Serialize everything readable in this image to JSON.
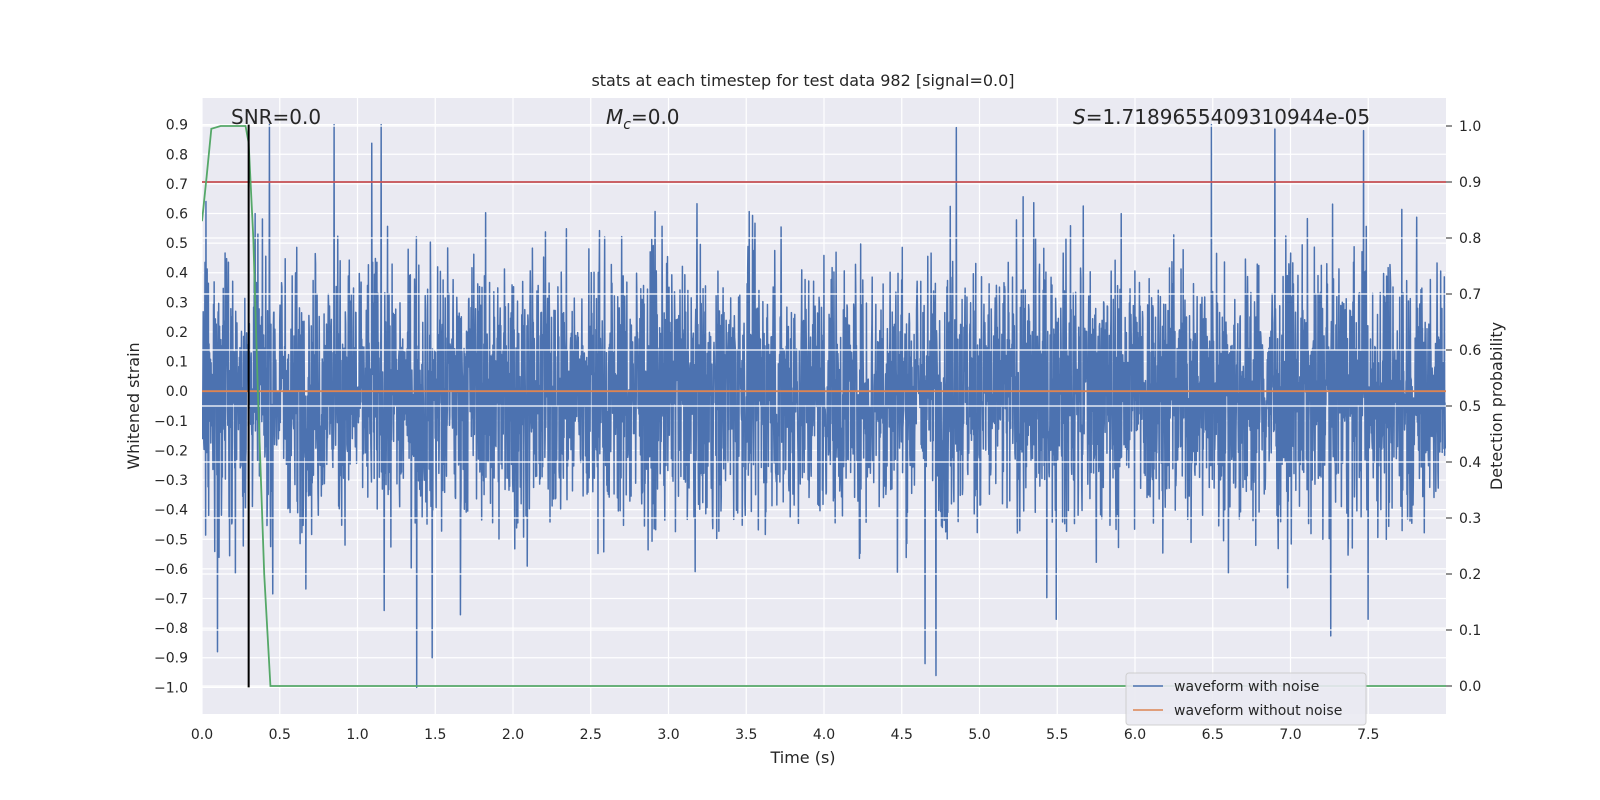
{
  "chart_data": {
    "type": "line",
    "title": "stats at each timestep for test data 982 [signal=0.0]",
    "xlabel": "Time (s)",
    "ylabel_left": "Whitened strain",
    "ylabel_right": "Detection probability",
    "xlim": [
      0.0,
      8.0
    ],
    "ylim_left": [
      -1.09,
      0.99
    ],
    "ylim_right": [
      -0.05,
      1.05
    ],
    "x_ticks": [
      "0.0",
      "0.5",
      "1.0",
      "1.5",
      "2.0",
      "2.5",
      "3.0",
      "3.5",
      "4.0",
      "4.5",
      "5.0",
      "5.5",
      "6.0",
      "6.5",
      "7.0",
      "7.5"
    ],
    "y_ticks_left": [
      "0.9",
      "0.8",
      "0.7",
      "0.6",
      "0.5",
      "0.4",
      "0.3",
      "0.2",
      "0.1",
      "0.0",
      "−0.1",
      "−0.2",
      "−0.3",
      "−0.4",
      "−0.5",
      "−0.6",
      "−0.7",
      "−0.8",
      "−0.9",
      "−1.0"
    ],
    "y_ticks_right": [
      "1.0",
      "0.9",
      "0.8",
      "0.7",
      "0.6",
      "0.5",
      "0.4",
      "0.3",
      "0.2",
      "0.1",
      "0.0"
    ],
    "annotations": {
      "snr": "SNR=0.0",
      "mc": "=0.0",
      "mc_symbol": "M",
      "mc_sub": "c",
      "s": "=1.7189655409310944e-05",
      "s_symbol": "S"
    },
    "series": [
      {
        "name": "waveform with noise",
        "axis": "left",
        "color": "#4c72b0",
        "description": "dense noise fluctuating roughly between -0.5 and 0.5 with spikes up to 0.9 and down to -1.0",
        "spikes": [
          {
            "x": 0.85,
            "y": 0.9
          },
          {
            "x": 4.85,
            "y": 0.89
          },
          {
            "x": 7.47,
            "y": 0.88
          },
          {
            "x": 0.1,
            "y": -0.88
          },
          {
            "x": 1.38,
            "y": -1.0
          },
          {
            "x": 1.48,
            "y": -0.9
          },
          {
            "x": 4.72,
            "y": -0.96
          },
          {
            "x": 4.65,
            "y": -0.92
          },
          {
            "x": 7.5,
            "y": -0.77
          }
        ]
      },
      {
        "name": "waveform without noise",
        "axis": "left",
        "color": "#dd8452",
        "x": [
          0.0,
          8.0
        ],
        "y": [
          0.0,
          0.0
        ]
      },
      {
        "name": "detection probability",
        "axis": "right",
        "color": "#55a868",
        "x": [
          0.0,
          0.03,
          0.06,
          0.12,
          0.2,
          0.28,
          0.3,
          0.33,
          0.36,
          0.4,
          0.44,
          8.0
        ],
        "y": [
          0.83,
          0.91,
          0.995,
          1.0,
          1.0,
          1.0,
          0.97,
          0.8,
          0.52,
          0.2,
          0.0,
          0.0
        ]
      },
      {
        "name": "threshold",
        "axis": "right",
        "color": "#c44e52",
        "x": [
          0.0,
          8.0
        ],
        "y": [
          0.9,
          0.9
        ]
      },
      {
        "name": "marker",
        "axis": "left",
        "color": "#000000",
        "x": [
          0.3,
          0.3
        ],
        "y": [
          -1.0,
          0.9
        ]
      }
    ],
    "legend": {
      "position": "lower-right",
      "entries": [
        {
          "label": "waveform with noise",
          "color": "#4c72b0"
        },
        {
          "label": "waveform without noise",
          "color": "#dd8452"
        }
      ]
    },
    "grid": true
  }
}
